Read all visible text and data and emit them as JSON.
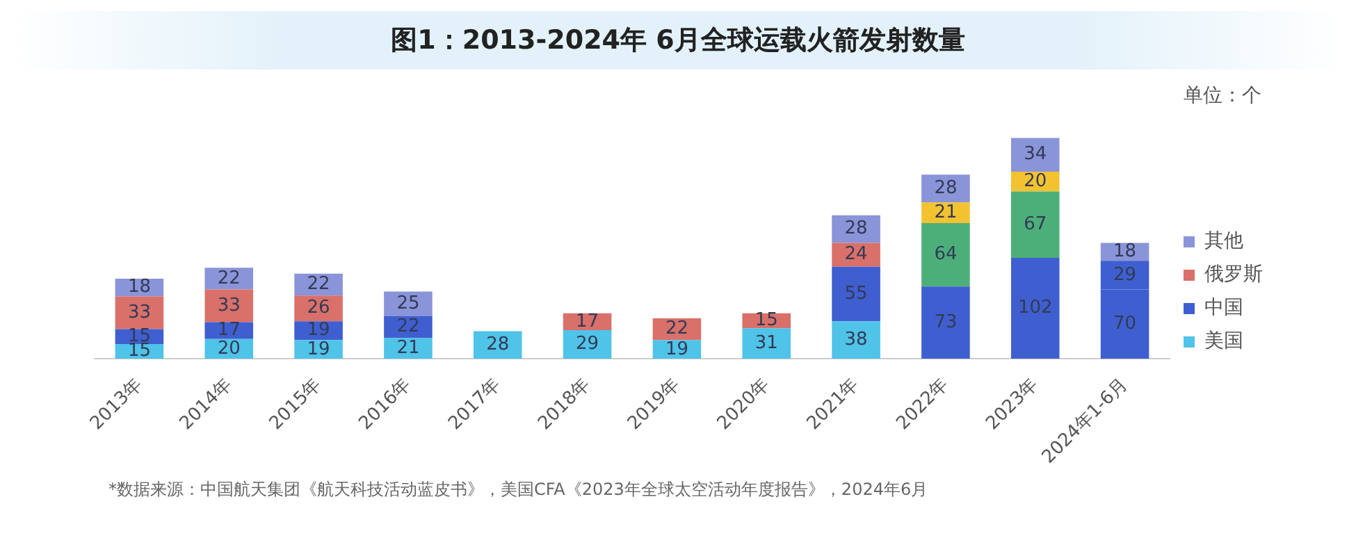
{
  "chart_data": {
    "type": "bar",
    "stacked": true,
    "title": "图1：2013-2024年 6月全球运载火箭发射数量",
    "categories": [
      "2013年",
      "2014年",
      "2015年",
      "2016年",
      "2017年",
      "2018年",
      "2019年",
      "2020年",
      "2021年",
      "2022年",
      "2023年",
      "2024年1-6月"
    ],
    "series": [
      {
        "name": "美国",
        "color": "#4fc3e8",
        "colors": [
          "#4fc3e8",
          "#4fc3e8",
          "#4fc3e8",
          "#4fc3e8",
          "#4fc3e8",
          "#4fc3e8",
          "#4fc3e8",
          "#4fc3e8",
          "#4fc3e8",
          "#3f5fd0",
          "#3f5fd0",
          "#3f5fd0"
        ],
        "values": [
          15,
          20,
          19,
          21,
          28,
          29,
          19,
          31,
          38,
          73,
          102,
          70
        ]
      },
      {
        "name": "中国",
        "color": "#3f5fd0",
        "colors": [
          "#3f5fd0",
          "#3f5fd0",
          "#3f5fd0",
          "#3f5fd0",
          "#3f5fd0",
          "#3f5fd0",
          "#3f5fd0",
          "#3f5fd0",
          "#3f5fd0",
          "#4caf7a",
          "#4caf7a",
          "#3f5fd0"
        ],
        "values": [
          15,
          17,
          19,
          22,
          null,
          null,
          null,
          null,
          55,
          64,
          67,
          29
        ]
      },
      {
        "name": "俄罗斯",
        "color": "#d9706a",
        "colors": [
          "#d9706a",
          "#d9706a",
          "#d9706a",
          "#d9706a",
          "#d9706a",
          "#d9706a",
          "#d9706a",
          "#d9706a",
          "#d9706a",
          "#f2c230",
          "#f2c230",
          "#d9706a"
        ],
        "values": [
          33,
          33,
          26,
          null,
          null,
          17,
          22,
          15,
          24,
          21,
          20,
          null
        ]
      },
      {
        "name": "其他",
        "color": "#8a94d8",
        "values": [
          18,
          22,
          22,
          25,
          null,
          null,
          null,
          null,
          28,
          28,
          34,
          18
        ]
      }
    ],
    "data_labels": true,
    "legend": "right",
    "grid": false,
    "annotations": [
      "单位：个",
      "*数据来源：中国航天集团《航天科技活动蓝皮书》，美国CFA《2023年全球太空活动年度报告》，2024年6月"
    ]
  }
}
